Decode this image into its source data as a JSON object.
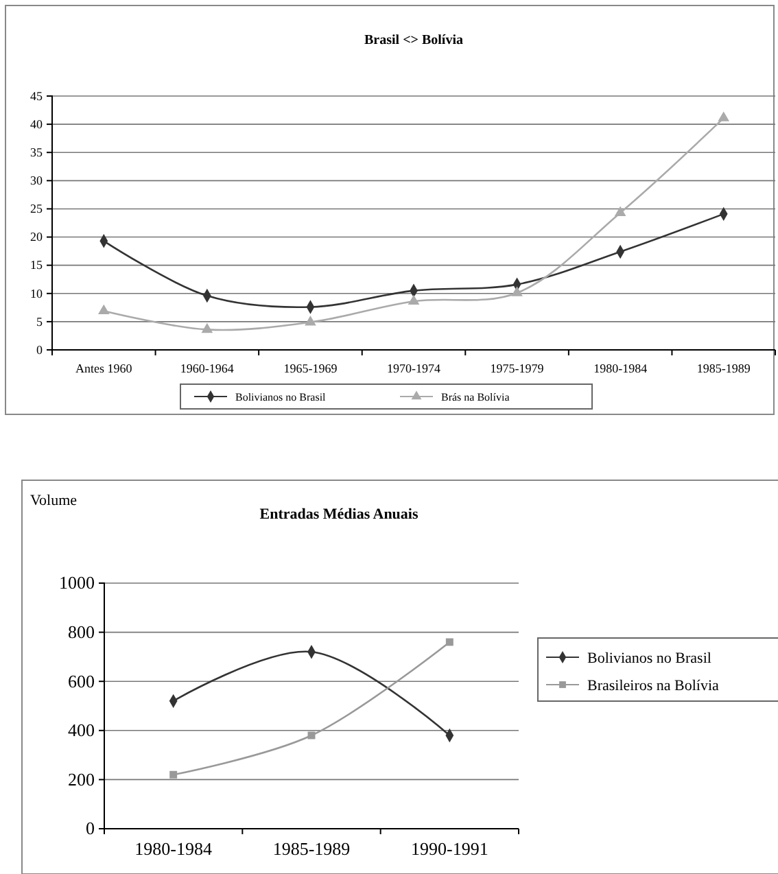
{
  "chart_data": [
    {
      "type": "line",
      "title": "Brasil <> Bolívia",
      "categories": [
        "Antes 1960",
        "1960-1964",
        "1965-1969",
        "1970-1974",
        "1975-1979",
        "1980-1984",
        "1985-1989"
      ],
      "series": [
        {
          "name": "Bolivianos no Brasil",
          "color": "#333333",
          "marker": "diamond",
          "values": [
            19.3,
            9.6,
            7.6,
            10.5,
            11.6,
            17.4,
            24.1
          ]
        },
        {
          "name": "Brás na Bolívia",
          "color": "#aaaaaa",
          "marker": "triangle",
          "values": [
            6.9,
            3.6,
            4.9,
            8.6,
            10.1,
            24.3,
            41.1
          ]
        }
      ],
      "ylim": [
        0,
        45
      ],
      "yticks": [
        0,
        5,
        10,
        15,
        20,
        25,
        30,
        35,
        40,
        45
      ],
      "grid": "y",
      "legend": "bottom"
    },
    {
      "type": "line",
      "title": "Entradas Médias Anuais",
      "ylabel": "Volume",
      "categories": [
        "1980-1984",
        "1985-1989",
        "1990-1991"
      ],
      "series": [
        {
          "name": "Bolivianos no Brasil",
          "color": "#333333",
          "marker": "diamond",
          "values": [
            520,
            720,
            380
          ]
        },
        {
          "name": "Brasileiros na Bolívia",
          "color": "#999999",
          "marker": "square",
          "values": [
            220,
            380,
            760
          ]
        }
      ],
      "ylim": [
        0,
        1000
      ],
      "yticks": [
        0,
        200,
        400,
        600,
        800,
        1000
      ],
      "grid": "y",
      "legend": "right"
    }
  ]
}
